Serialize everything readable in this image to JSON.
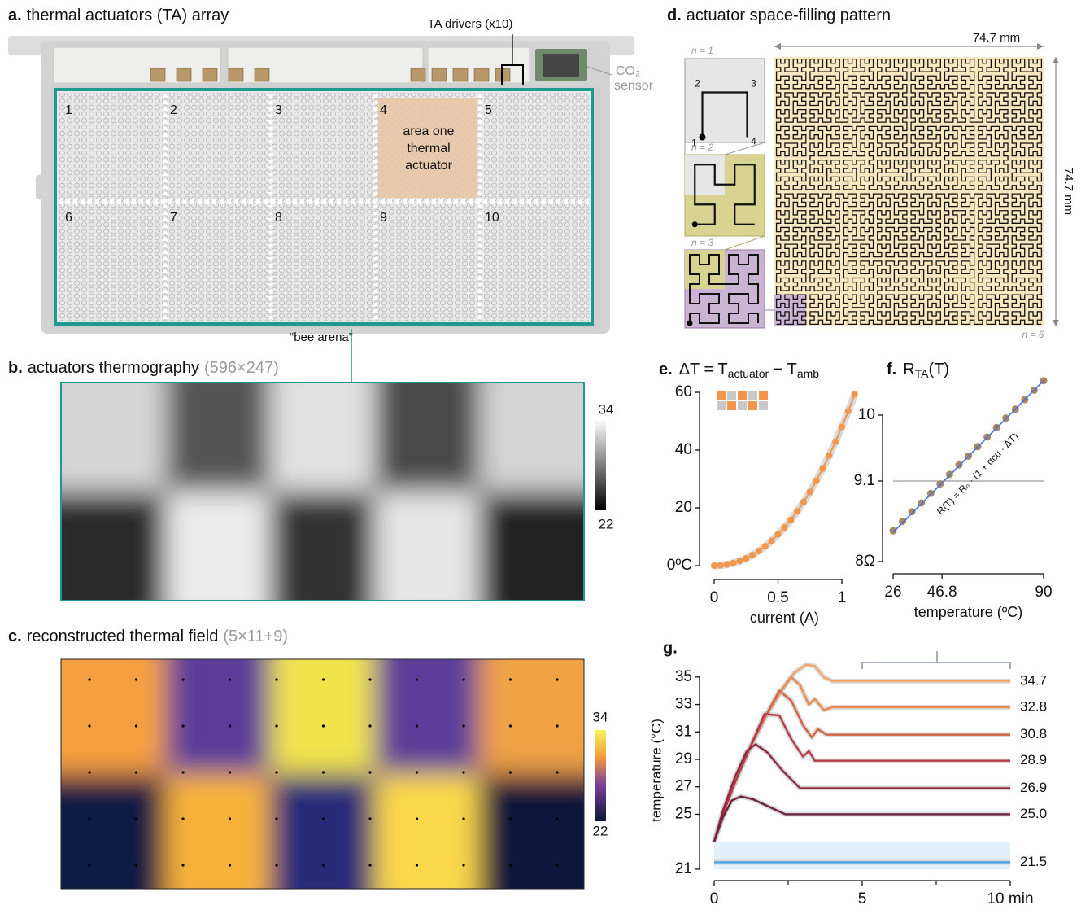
{
  "panels": {
    "a": {
      "label": "a.",
      "title": "thermal actuators (TA) array",
      "drivers": "TA drivers (x10)",
      "co2": "CO₂",
      "sensor": "sensor",
      "cells": [
        "1",
        "2",
        "3",
        "4",
        "5",
        "6",
        "7",
        "8",
        "9",
        "10"
      ],
      "area_note": [
        "area one",
        "thermal",
        "actuator"
      ],
      "arena": "“bee arena”"
    },
    "b": {
      "label": "b.",
      "title": "actuators thermography",
      "size": "(596×247)",
      "cbar": [
        "34",
        "22"
      ]
    },
    "c": {
      "label": "c.",
      "title": "reconstructed thermal field",
      "size": "(5×11+9)",
      "cbar": [
        "34",
        "22"
      ]
    },
    "d": {
      "label": "d.",
      "title": "actuator space-filling pattern",
      "width": "74.7 mm",
      "height": "74.7 mm",
      "orders": [
        "n = 1",
        "n = 2",
        "n = 3",
        "n = 6"
      ],
      "corners": [
        "1",
        "2",
        "3",
        "4"
      ]
    }
  },
  "chart_data": [
    {
      "type": "line",
      "label": "e.",
      "title_parts": [
        "ΔT = T",
        "actuator",
        " − T",
        "amb"
      ],
      "xlabel": "current (A)",
      "markers": true,
      "color": "#f4964a",
      "x": [
        0,
        0.05,
        0.1,
        0.15,
        0.2,
        0.25,
        0.3,
        0.35,
        0.4,
        0.45,
        0.5,
        0.55,
        0.6,
        0.65,
        0.7,
        0.75,
        0.8,
        0.85,
        0.9,
        0.95,
        1.0,
        1.05,
        1.1
      ],
      "values": [
        0,
        0.1,
        0.4,
        0.9,
        1.6,
        2.5,
        3.7,
        5.1,
        6.7,
        8.6,
        10.8,
        13.2,
        15.8,
        18.8,
        22.0,
        25.5,
        29.4,
        33.6,
        38.1,
        42.9,
        48.0,
        53.5,
        59.3
      ],
      "xlim": [
        0,
        1.1
      ],
      "ylim": [
        0,
        60
      ],
      "xticks": [
        0,
        0.5,
        1
      ],
      "yticks": [
        {
          "value": 0,
          "label": "0ºC"
        },
        20,
        40,
        60
      ]
    },
    {
      "type": "scatter",
      "label": "f.",
      "title_parts": [
        "R",
        "TA",
        "(T)"
      ],
      "xlabel": "temperature (ºC)",
      "color": "#a8895f",
      "x": [
        26,
        30,
        34,
        38,
        42,
        46,
        50,
        54,
        58,
        62,
        66,
        70,
        74,
        78,
        82,
        86,
        90
      ],
      "values": [
        8.42,
        8.55,
        8.68,
        8.8,
        8.93,
        9.06,
        9.19,
        9.32,
        9.44,
        9.57,
        9.7,
        9.83,
        9.96,
        10.08,
        10.21,
        10.34,
        10.47
      ],
      "fit": {
        "x": [
          26,
          90
        ],
        "values": [
          8.4,
          10.47
        ],
        "color": "#4a6ee0",
        "label": "R(T) = R₀ · (1 + αcu · ΔT)"
      },
      "hline": 9.1,
      "xlim": [
        26,
        90
      ],
      "ylim": [
        8,
        10.5
      ],
      "xticks": [
        26,
        46.8,
        90
      ],
      "yticks": [
        {
          "value": 8,
          "label": "8Ω"
        },
        9.1,
        10
      ]
    },
    {
      "type": "line",
      "label": "g.",
      "ylabel": "temperature (°C)",
      "xlim": [
        0,
        10
      ],
      "ylim": [
        20.4,
        36
      ],
      "xticks": [
        0,
        5,
        {
          "value": 10,
          "label": "10 min"
        }
      ],
      "yticks": [
        21,
        25,
        27,
        29,
        31,
        33,
        35
      ],
      "series": [
        {
          "color": "#f5a66b",
          "x": [
            0,
            0.3,
            0.7,
            1.2,
            1.7,
            2.2,
            2.7,
            3.1,
            3.4,
            3.7,
            4,
            5,
            6,
            7,
            8,
            9,
            10
          ],
          "values": [
            23,
            25,
            27.3,
            29.8,
            32,
            33.8,
            35.3,
            35.9,
            35.8,
            35,
            34.7,
            34.7,
            34.7,
            34.7,
            34.7,
            34.7,
            34.7
          ],
          "end": {
            "value": 34.7,
            "label": "34.7"
          }
        },
        {
          "color": "#eb8a4a",
          "x": [
            0,
            0.3,
            0.7,
            1.2,
            1.7,
            2.2,
            2.6,
            2.9,
            3.2,
            3.4,
            3.7,
            4,
            5,
            10
          ],
          "values": [
            23,
            25,
            27.3,
            29.8,
            32,
            33.8,
            35,
            34.4,
            33,
            33.4,
            32.6,
            32.8,
            32.8,
            32.8
          ],
          "end": {
            "value": 32.8,
            "label": "32.8"
          }
        },
        {
          "color": "#d4623f",
          "x": [
            0,
            0.3,
            0.7,
            1.2,
            1.7,
            2.2,
            2.6,
            3,
            3.3,
            3.5,
            3.8,
            5,
            10
          ],
          "values": [
            23,
            25,
            27.3,
            29.8,
            32,
            34,
            33.3,
            31.5,
            30.6,
            31.2,
            30.8,
            30.8,
            30.8
          ],
          "end": {
            "value": 30.8,
            "label": "30.8"
          }
        },
        {
          "color": "#b63b46",
          "x": [
            0,
            0.3,
            0.7,
            1.2,
            1.7,
            2.2,
            2.6,
            3,
            3.2,
            3.4,
            5,
            10
          ],
          "values": [
            23,
            25,
            27.3,
            29.8,
            32.3,
            32.2,
            30.5,
            29.2,
            29.6,
            28.9,
            28.9,
            28.9
          ],
          "end": {
            "value": 28.9,
            "label": "28.9"
          }
        },
        {
          "color": "#8f2a45",
          "x": [
            0,
            0.3,
            0.7,
            1.1,
            1.4,
            1.8,
            2.3,
            2.9,
            5,
            10
          ],
          "values": [
            23,
            25.3,
            27.7,
            29.6,
            30.1,
            29.5,
            28.2,
            26.9,
            26.9,
            26.9
          ],
          "end": {
            "value": 26.9,
            "label": "26.9"
          }
        },
        {
          "color": "#6e2040",
          "x": [
            0,
            0.3,
            0.6,
            0.9,
            1.3,
            1.9,
            2.4,
            5,
            10
          ],
          "values": [
            23,
            24.8,
            26,
            26.3,
            26.1,
            25.5,
            25,
            25,
            25
          ],
          "end": {
            "value": 25,
            "label": "25.0"
          }
        },
        {
          "color": "#4ea3e6",
          "x": [
            0,
            2.5,
            5,
            7.5,
            10
          ],
          "values": [
            21.5,
            21.5,
            21.5,
            21.5,
            21.5
          ],
          "end": {
            "value": 21.5,
            "label": "21.5"
          }
        }
      ]
    }
  ]
}
